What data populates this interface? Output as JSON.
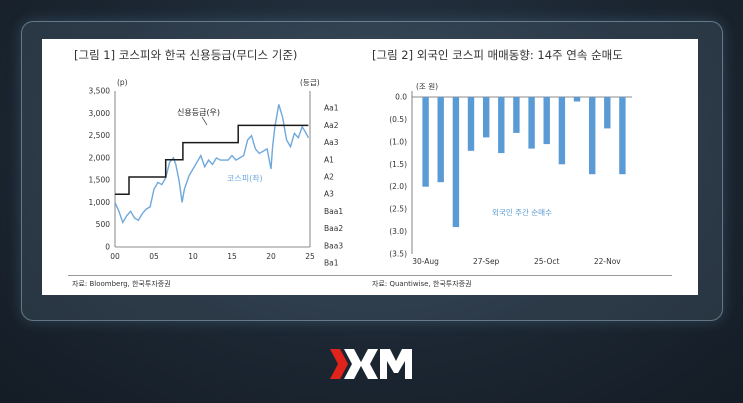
{
  "colors": {
    "accent_red": "#e0241b",
    "line": "#6fa8dc",
    "step": "#1a1a1a",
    "bar": "#5b9bd5"
  },
  "brand": {
    "logo_text": "XM"
  },
  "figures": [
    {
      "title": "[그림 1] 코스피와 한국 신용등급(무디스 기준)",
      "source": "자료: Bloomberg, 한국투자증권"
    },
    {
      "title": "[그림 2] 외국인 코스피 매매동향: 14주 연속 순매도",
      "source": "자료: Quantiwise, 한국투자증권"
    }
  ],
  "chart_data": [
    {
      "type": "line",
      "title": "[그림 1] 코스피와 한국 신용등급(무디스 기준)",
      "y_unit": "(p)",
      "y2_unit": "(등급)",
      "ylim": [
        0,
        3500
      ],
      "yticks": [
        "0",
        "500",
        "1,000",
        "1,500",
        "2,000",
        "2,500",
        "3,000",
        "3,500"
      ],
      "xlim": [
        0,
        25
      ],
      "xticks": [
        "00",
        "05",
        "10",
        "15",
        "20",
        "25"
      ],
      "y2_ticks": [
        "Aa1",
        "Aa2",
        "Aa3",
        "A1",
        "A2",
        "A3",
        "Baa1",
        "Baa2",
        "Baa3",
        "Ba1"
      ],
      "grid": false,
      "series": [
        {
          "name": "코스피(좌)",
          "x": [
            0,
            0.5,
            1,
            1.5,
            2,
            2.5,
            3,
            3.5,
            4,
            4.5,
            5,
            5.5,
            6,
            6.5,
            7,
            7.5,
            7.8,
            8.2,
            8.6,
            8.9,
            9.5,
            10,
            10.5,
            11,
            11.5,
            12,
            12.5,
            13,
            13.5,
            14,
            14.5,
            15,
            15.5,
            16,
            16.5,
            17,
            17.5,
            18,
            18.5,
            19,
            19.5,
            20,
            20.2,
            20.5,
            21,
            21.5,
            21.8,
            22,
            22.5,
            23,
            23.5,
            24,
            24.5,
            24.8
          ],
          "values": [
            1000,
            800,
            550,
            700,
            800,
            650,
            600,
            750,
            850,
            900,
            1300,
            1450,
            1400,
            1550,
            1900,
            2000,
            1850,
            1500,
            1000,
            1300,
            1600,
            1750,
            1900,
            2050,
            1800,
            1950,
            1850,
            2000,
            1950,
            1950,
            1950,
            2050,
            1950,
            2000,
            2050,
            2400,
            2500,
            2200,
            2100,
            2150,
            2200,
            1750,
            2250,
            2700,
            3200,
            2900,
            2600,
            2400,
            2250,
            2550,
            2450,
            2700,
            2550,
            2450
          ]
        },
        {
          "name": "신용등급(우)",
          "x": [
            0,
            1.8,
            1.8,
            6.5,
            6.5,
            8.7,
            8.7,
            10.5,
            10.5,
            12.5,
            12.5,
            15.8,
            15.8,
            24.8
          ],
          "values": [
            "A3",
            "A3",
            "A2",
            "A2",
            "A1",
            "A1",
            "Aa3",
            "Aa3",
            "Aa3",
            "Aa3",
            "Aa3",
            "Aa3",
            "Aa2",
            "Aa2"
          ],
          "levels": [
            6,
            6,
            5,
            5,
            4,
            4,
            3,
            3,
            3,
            3,
            3,
            3,
            2,
            2
          ]
        }
      ],
      "annotations": [
        "신용등급(우)",
        "코스피(좌)"
      ]
    },
    {
      "type": "bar",
      "title": "[그림 2] 외국인 코스피 매매동향: 14주 연속 순매도",
      "y_unit": "(조 원)",
      "ylim": [
        -3.5,
        0
      ],
      "yticks": [
        "0.0",
        "(0.5)",
        "(1.0)",
        "(1.5)",
        "(2.0)",
        "(2.5)",
        "(3.0)",
        "(3.5)"
      ],
      "xtick_labels": [
        "30-Aug",
        "27-Sep",
        "25-Oct",
        "22-Nov"
      ],
      "xtick_at": [
        0,
        4,
        8,
        12
      ],
      "series": [
        {
          "name": "외국인 주간 순매수",
          "values": [
            -2.0,
            -1.9,
            -2.9,
            -1.2,
            -0.9,
            -1.25,
            -0.8,
            -1.15,
            -1.05,
            -1.5,
            -0.1,
            -1.72,
            -0.7,
            -1.72
          ]
        }
      ],
      "grid": false
    }
  ]
}
